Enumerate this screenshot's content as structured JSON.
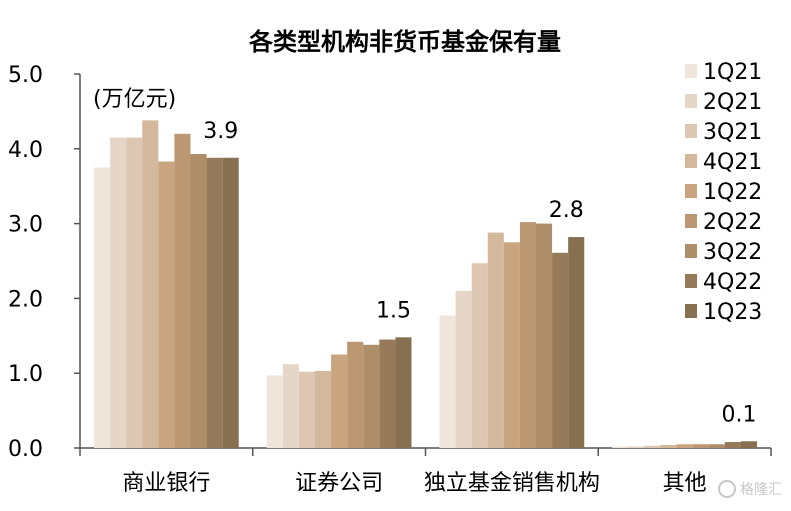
{
  "chart_data": {
    "type": "bar",
    "title": "各类型机构非货币基金保有量",
    "unit_label": "(万亿元)",
    "xlabel": "",
    "ylabel": "",
    "ylim": [
      0,
      5
    ],
    "yticks": [
      "0.0",
      "1.0",
      "2.0",
      "3.0",
      "4.0",
      "5.0"
    ],
    "categories": [
      "商业银行",
      "证券公司",
      "独立基金销售机构",
      "其他"
    ],
    "series": [
      {
        "name": "1Q21",
        "color": "#EFE5DB",
        "values": [
          3.75,
          0.97,
          1.77,
          0.02
        ]
      },
      {
        "name": "2Q21",
        "color": "#E6D6C7",
        "values": [
          4.15,
          1.12,
          2.1,
          0.02
        ]
      },
      {
        "name": "3Q21",
        "color": "#DDC7B2",
        "values": [
          4.15,
          1.02,
          2.47,
          0.03
        ]
      },
      {
        "name": "4Q21",
        "color": "#D4B89B",
        "values": [
          4.38,
          1.03,
          2.88,
          0.04
        ]
      },
      {
        "name": "1Q22",
        "color": "#C9A57F",
        "values": [
          3.83,
          1.25,
          2.75,
          0.05
        ]
      },
      {
        "name": "2Q22",
        "color": "#BC9872",
        "values": [
          4.2,
          1.42,
          3.02,
          0.05
        ]
      },
      {
        "name": "3Q22",
        "color": "#AE8D69",
        "values": [
          3.93,
          1.38,
          3.0,
          0.05
        ]
      },
      {
        "name": "4Q22",
        "color": "#977A5A",
        "values": [
          3.88,
          1.45,
          2.61,
          0.08
        ]
      },
      {
        "name": "1Q23",
        "color": "#86704F",
        "values": [
          3.88,
          1.48,
          2.82,
          0.09
        ]
      }
    ],
    "data_labels": [
      "3.9",
      "1.5",
      "2.8",
      "0.1"
    ],
    "legend_position": "right",
    "grid": false
  },
  "watermark": "格隆汇"
}
